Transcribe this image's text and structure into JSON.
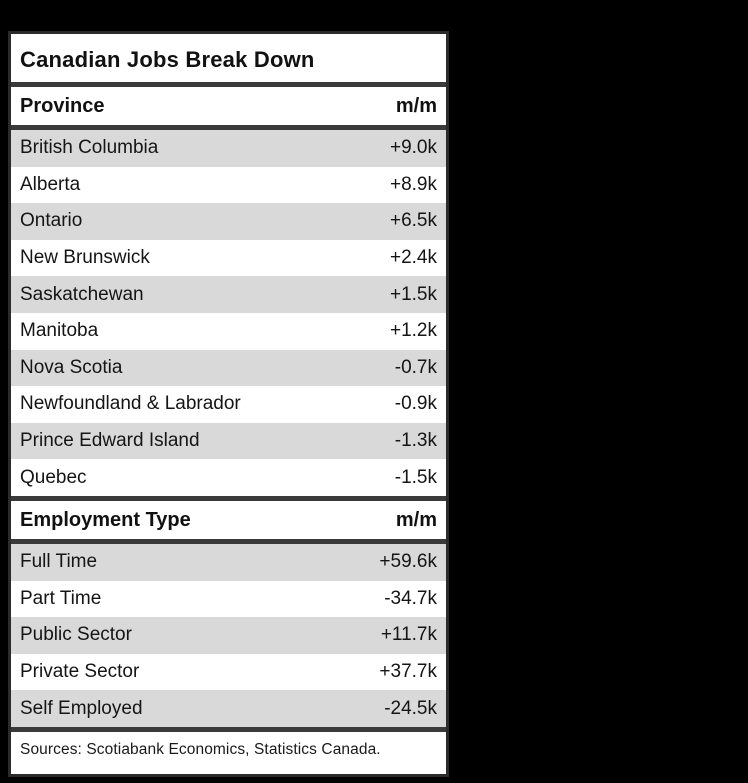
{
  "window": {
    "background_color": "#000000"
  },
  "card": {
    "background_color": "#ffffff",
    "rule_color": "#3a3a3a",
    "row_shade_color": "#d9d9d9",
    "text_color": "#111111",
    "title": "Canadian Jobs Break Down",
    "source_note": "Sources: Scotiabank Economics, Statistics Canada."
  },
  "sections": [
    {
      "header": {
        "label": "Province",
        "value_label": "m/m"
      },
      "rows": [
        {
          "label": "British Columbia",
          "value": "+9.0k"
        },
        {
          "label": "Alberta",
          "value": "+8.9k"
        },
        {
          "label": "Ontario",
          "value": "+6.5k"
        },
        {
          "label": "New Brunswick",
          "value": "+2.4k"
        },
        {
          "label": "Saskatchewan",
          "value": "+1.5k"
        },
        {
          "label": "Manitoba",
          "value": "+1.2k"
        },
        {
          "label": "Nova Scotia",
          "value": "-0.7k"
        },
        {
          "label": "Newfoundland & Labrador",
          "value": "-0.9k"
        },
        {
          "label": "Prince Edward Island",
          "value": "-1.3k"
        },
        {
          "label": "Quebec",
          "value": "-1.5k"
        }
      ]
    },
    {
      "header": {
        "label": "Employment Type",
        "value_label": "m/m"
      },
      "rows": [
        {
          "label": "Full Time",
          "value": "+59.6k"
        },
        {
          "label": "Part Time",
          "value": "-34.7k"
        },
        {
          "label": "Public Sector",
          "value": "+11.7k"
        },
        {
          "label": "Private Sector",
          "value": "+37.7k"
        },
        {
          "label": "Self Employed",
          "value": "-24.5k"
        }
      ]
    }
  ],
  "chart_data": {
    "type": "table",
    "title": "Canadian Jobs Break Down",
    "tables": [
      {
        "columns": [
          "Province",
          "m/m"
        ],
        "rows": [
          [
            "British Columbia",
            "+9.0k"
          ],
          [
            "Alberta",
            "+8.9k"
          ],
          [
            "Ontario",
            "+6.5k"
          ],
          [
            "New Brunswick",
            "+2.4k"
          ],
          [
            "Saskatchewan",
            "+1.5k"
          ],
          [
            "Manitoba",
            "+1.2k"
          ],
          [
            "Nova Scotia",
            "-0.7k"
          ],
          [
            "Newfoundland & Labrador",
            "-0.9k"
          ],
          [
            "Prince Edward Island",
            "-1.3k"
          ],
          [
            "Quebec",
            "-1.5k"
          ]
        ],
        "values_thousands": [
          9.0,
          8.9,
          6.5,
          2.4,
          1.5,
          1.2,
          -0.7,
          -0.9,
          -1.3,
          -1.5
        ]
      },
      {
        "columns": [
          "Employment Type",
          "m/m"
        ],
        "rows": [
          [
            "Full Time",
            "+59.6k"
          ],
          [
            "Part Time",
            "-34.7k"
          ],
          [
            "Public Sector",
            "+11.7k"
          ],
          [
            "Private Sector",
            "+37.7k"
          ],
          [
            "Self Employed",
            "-24.5k"
          ]
        ],
        "values_thousands": [
          59.6,
          -34.7,
          11.7,
          37.7,
          -24.5
        ]
      }
    ],
    "source": "Sources: Scotiabank Economics, Statistics Canada.",
    "layout_hints": {
      "alternating_row_shading": "odd rows shaded",
      "value_alignment": "right",
      "section_divider": "thick dark rule"
    }
  }
}
